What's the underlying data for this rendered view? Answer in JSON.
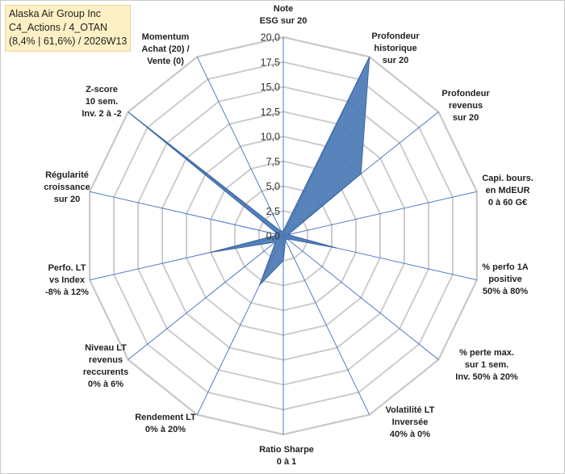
{
  "header": {
    "line1": "Alaska Air Group Inc",
    "line2": "C4_Actions / 4_OTAN",
    "line3": "(8,4% | 61,6%) / 2026W13"
  },
  "colors": {
    "fill": "#4a78b5",
    "stroke": "#3a64a0",
    "grid": "#c8c8c8",
    "spoke": "#3f6fc0",
    "title_bg": "#fdf0c4"
  },
  "chart_data": {
    "type": "radar",
    "rmin": 0,
    "rmax": 20,
    "ticks": [
      "0,0",
      "2,5",
      "5,0",
      "7,5",
      "10,0",
      "12,5",
      "15,0",
      "17,5",
      "20,0"
    ],
    "tick_values": [
      0,
      2.5,
      5,
      7.5,
      10,
      12.5,
      15,
      17.5,
      20
    ],
    "axes": [
      {
        "label": [
          "Note",
          "ESG sur 20"
        ],
        "value": 0.5
      },
      {
        "label": [
          "Profondeur",
          "historique",
          "sur 20"
        ],
        "value": 20
      },
      {
        "label": [
          "Profondeur",
          "revenus",
          "sur 20"
        ],
        "value": 10
      },
      {
        "label": [
          "Capi. bours.",
          "en MdEUR",
          "0 à 60 G€"
        ],
        "value": 0.5
      },
      {
        "label": [
          "% perfo 1A",
          "positive",
          "50% à 80%"
        ],
        "value": 5.5
      },
      {
        "label": [
          "% perte max.",
          "sur 1 sem.",
          "Inv. 50% à 20%"
        ],
        "value": 0.5
      },
      {
        "label": [
          "Volatilité LT",
          "Inversée",
          "40% à 0%"
        ],
        "value": 0.5
      },
      {
        "label": [
          "Ratio Sharpe",
          "0 à 1"
        ],
        "value": 2.5
      },
      {
        "label": [
          "Rendement LT",
          "0% à 20%"
        ],
        "value": 5.5
      },
      {
        "label": [
          "Niveau LT",
          "revenus",
          "reccurents",
          "0% à 6%"
        ],
        "value": 1
      },
      {
        "label": [
          "Perfo. LT",
          "vs Index",
          "-8% à 12%"
        ],
        "value": 7.5
      },
      {
        "label": [
          "Régularité",
          "croissance",
          "sur 20"
        ],
        "value": 0.5
      },
      {
        "label": [
          "Z-score",
          "10 sem.",
          "Inv. 2 à -2"
        ],
        "value": 20
      },
      {
        "label": [
          "Momentum",
          "Achat (20) /",
          "Vente (0)"
        ],
        "value": 0.5
      }
    ]
  }
}
